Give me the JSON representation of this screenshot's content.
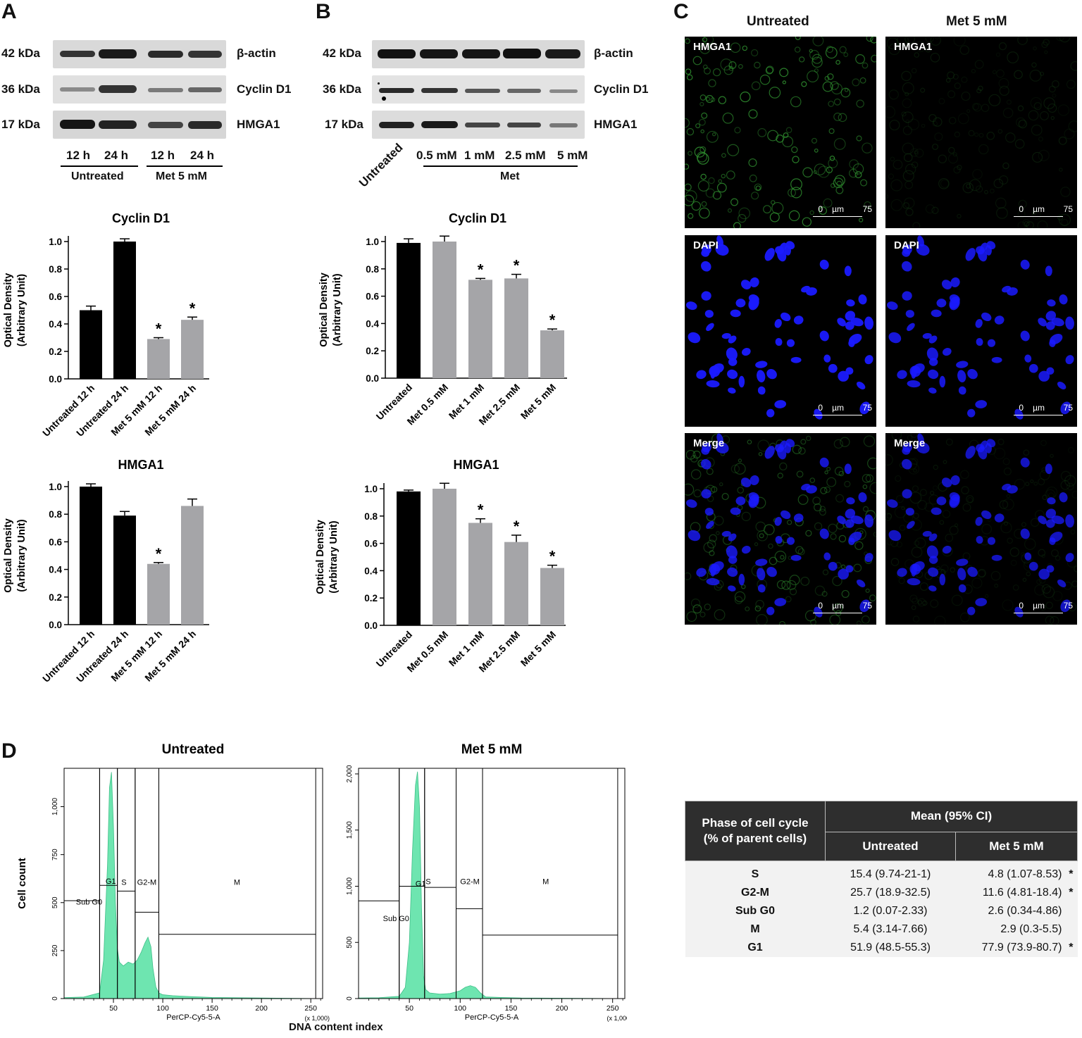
{
  "panel_letters": {
    "a": "A",
    "b": "B",
    "c": "C",
    "d": "D"
  },
  "blot_a": {
    "kda": [
      "42 kDa",
      "36 kDa",
      "17 kDa"
    ],
    "proteins": [
      "β-actin",
      "Cyclin D1",
      "HMGA1"
    ],
    "lanes": [
      "12 h",
      "24 h",
      "12 h",
      "24 h"
    ],
    "groups": [
      "Untreated",
      "Met 5 mM"
    ]
  },
  "blot_b": {
    "kda": [
      "42 kDa",
      "36 kDa",
      "17 kDa"
    ],
    "proteins": [
      "β-actin",
      "Cyclin D1",
      "HMGA1"
    ],
    "lanes": [
      "Untreated",
      "0.5 mM",
      "1 mM",
      "2.5 mM",
      "5 mM"
    ],
    "group": "Met"
  },
  "micro": {
    "col_headers": [
      "Untreated",
      "Met 5 mM"
    ],
    "row_labels": [
      "HMGA1",
      "DAPI",
      "Merge"
    ],
    "scale": {
      "zero": "0",
      "unit": "µm",
      "max": "75"
    },
    "colors": {
      "hmga1": "#2f8f2f",
      "dapi": "#1a1aff",
      "background": "#000000"
    }
  },
  "chart_data": [
    {
      "id": "a_cyclin",
      "type": "bar",
      "title": "Cyclin D1",
      "ylabel": "Optical Density\n(Arbitrary Unit)",
      "ylim": [
        0,
        1.0
      ],
      "yticks": [
        "0.0",
        "0.2",
        "0.4",
        "0.6",
        "0.8",
        "1.0"
      ],
      "categories": [
        "Untreated 12 h",
        "Untreated 24 h",
        "Met 5 mM 12 h",
        "Met 5 mM 24 h"
      ],
      "values": [
        0.5,
        1.0,
        0.29,
        0.43
      ],
      "errors": [
        0.03,
        0.02,
        0.01,
        0.02
      ],
      "colors": [
        "#000000",
        "#000000",
        "#a5a5a8",
        "#a5a5a8"
      ],
      "sig": [
        "",
        "",
        "*",
        "*"
      ]
    },
    {
      "id": "a_hmga1",
      "type": "bar",
      "title": "HMGA1",
      "ylabel": "Optical Density\n(Arbitrary Unit)",
      "ylim": [
        0,
        1.0
      ],
      "yticks": [
        "0.0",
        "0.2",
        "0.4",
        "0.6",
        "0.8",
        "1.0"
      ],
      "categories": [
        "Untreated 12 h",
        "Untreated 24 h",
        "Met 5 mM 12 h",
        "Met 5 mM 24 h"
      ],
      "values": [
        1.0,
        0.79,
        0.44,
        0.86
      ],
      "errors": [
        0.02,
        0.03,
        0.01,
        0.05
      ],
      "colors": [
        "#000000",
        "#000000",
        "#a5a5a8",
        "#a5a5a8"
      ],
      "sig": [
        "",
        "",
        "*",
        ""
      ]
    },
    {
      "id": "b_cyclin",
      "type": "bar",
      "title": "Cyclin D1",
      "ylabel": "Optical Density\n(Arbitrary Unit)",
      "ylim": [
        0,
        1.0
      ],
      "yticks": [
        "0.0",
        "0.2",
        "0.4",
        "0.6",
        "0.8",
        "1.0"
      ],
      "categories": [
        "Untreated",
        "Met 0.5 mM",
        "Met 1 mM",
        "Met 2.5 mM",
        "Met 5 mM"
      ],
      "values": [
        0.99,
        1.0,
        0.72,
        0.73,
        0.35
      ],
      "errors": [
        0.03,
        0.04,
        0.01,
        0.03,
        0.01
      ],
      "colors": [
        "#000000",
        "#a5a5a8",
        "#a5a5a8",
        "#a5a5a8",
        "#a5a5a8"
      ],
      "sig": [
        "",
        "",
        "*",
        "*",
        "*"
      ]
    },
    {
      "id": "b_hmga1",
      "type": "bar",
      "title": "HMGA1",
      "ylabel": "Optical Density\n(Arbitrary Unit)",
      "ylim": [
        0,
        1.0
      ],
      "yticks": [
        "0.0",
        "0.2",
        "0.4",
        "0.6",
        "0.8",
        "1.0"
      ],
      "categories": [
        "Untreated",
        "Met 0.5 mM",
        "Met 1 mM",
        "Met 2.5 mM",
        "Met 5 mM"
      ],
      "values": [
        0.98,
        1.0,
        0.75,
        0.61,
        0.42
      ],
      "errors": [
        0.01,
        0.04,
        0.03,
        0.05,
        0.02
      ],
      "colors": [
        "#000000",
        "#a5a5a8",
        "#a5a5a8",
        "#a5a5a8",
        "#a5a5a8"
      ],
      "sig": [
        "",
        "",
        "*",
        "*",
        "*"
      ]
    },
    {
      "id": "d_untreated",
      "type": "area",
      "title": "Untreated",
      "ylabel": "Cell count",
      "xlabel": "PerCP-Cy5-5-A",
      "x_multiplier": "(x 1,000)",
      "xlim": [
        0,
        262
      ],
      "ylim": [
        0,
        1200
      ],
      "xticks": [
        50,
        100,
        150,
        200,
        250
      ],
      "yticks": [
        0,
        250,
        500,
        750,
        1000
      ],
      "ytick_labels": [
        "0",
        "250",
        "500",
        "750",
        "1,000"
      ],
      "x": [
        0,
        20,
        36,
        40,
        44,
        46,
        48,
        50,
        52,
        54,
        56,
        60,
        65,
        70,
        74,
        78,
        82,
        85,
        88,
        90,
        93,
        96,
        100,
        110,
        130,
        150,
        200,
        260
      ],
      "y": [
        5,
        8,
        30,
        200,
        700,
        1100,
        1180,
        900,
        500,
        260,
        190,
        170,
        190,
        180,
        200,
        240,
        290,
        320,
        270,
        160,
        60,
        30,
        20,
        15,
        10,
        6,
        3,
        0
      ],
      "gates": [
        {
          "name": "Sub G0",
          "x0": 0,
          "x1": 36,
          "level": 510
        },
        {
          "name": "G1",
          "x0": 36,
          "x1": 54,
          "level": 590
        },
        {
          "name": "S",
          "x0": 54,
          "x1": 72,
          "level": 560
        },
        {
          "name": "G2-M",
          "x0": 72,
          "x1": 96,
          "level": 450
        },
        {
          "name": "M",
          "x0": 96,
          "x1": 255,
          "level": 335
        }
      ],
      "gate_labels": [
        {
          "name": "Sub G0",
          "x": 12,
          "y": 490
        },
        {
          "name": "G1",
          "x": 42,
          "y": 598
        },
        {
          "name": "S",
          "x": 58,
          "y": 592
        },
        {
          "name": "G2-M",
          "x": 74,
          "y": 592
        },
        {
          "name": "M",
          "x": 172,
          "y": 592
        }
      ]
    },
    {
      "id": "d_met",
      "type": "area",
      "title": "Met 5 mM",
      "ylabel": "Cell count",
      "xlabel": "PerCP-Cy5-5-A",
      "x_multiplier": "(x 1,000)",
      "xlim": [
        0,
        262
      ],
      "ylim": [
        0,
        2050
      ],
      "xticks": [
        50,
        100,
        150,
        200,
        250
      ],
      "yticks": [
        0,
        500,
        1000,
        1500,
        2000
      ],
      "ytick_labels": [
        "0",
        "500",
        "1,000",
        "1,500",
        "2,000"
      ],
      "x": [
        0,
        20,
        40,
        46,
        50,
        53,
        56,
        58,
        60,
        62,
        64,
        66,
        70,
        80,
        90,
        100,
        105,
        110,
        115,
        120,
        125,
        140,
        160,
        260
      ],
      "y": [
        5,
        8,
        20,
        100,
        500,
        1300,
        1900,
        2020,
        1700,
        800,
        200,
        80,
        50,
        40,
        45,
        70,
        100,
        115,
        100,
        50,
        15,
        10,
        5,
        0
      ],
      "gates": [
        {
          "name": "Sub G0",
          "x0": 0,
          "x1": 40,
          "level": 870
        },
        {
          "name": "G1",
          "x0": 40,
          "x1": 65,
          "level": 1000
        },
        {
          "name": "S",
          "x0": 65,
          "x1": 96,
          "level": 990
        },
        {
          "name": "G2-M",
          "x0": 96,
          "x1": 122,
          "level": 800
        },
        {
          "name": "M",
          "x0": 122,
          "x1": 255,
          "level": 565
        }
      ],
      "gate_labels": [
        {
          "name": "Sub G0",
          "x": 24,
          "y": 690
        },
        {
          "name": "G1",
          "x": 56,
          "y": 1000
        },
        {
          "name": "S",
          "x": 66,
          "y": 1020
        },
        {
          "name": "G2-M",
          "x": 100,
          "y": 1020
        },
        {
          "name": "M",
          "x": 181,
          "y": 1020
        }
      ]
    }
  ],
  "flow": {
    "shared_xlabel": "DNA content index",
    "fill_color": "#6ee5b0"
  },
  "table": {
    "header_phase": "Phase of cell cycle\n(% of parent cells)",
    "header_mean": "Mean (95% CI)",
    "col_untreated": "Untreated",
    "col_met": "Met 5 mM",
    "rows": [
      {
        "phase": "S",
        "untreated": "15.4 (9.74-21-1)",
        "met": "4.8 (1.07-8.53)",
        "sig": "*"
      },
      {
        "phase": "G2-M",
        "untreated": "25.7 (18.9-32.5)",
        "met": "11.6 (4.81-18.4)",
        "sig": "*"
      },
      {
        "phase": "Sub G0",
        "untreated": "1.2 (0.07-2.33)",
        "met": "2.6 (0.34-4.86)",
        "sig": ""
      },
      {
        "phase": "M",
        "untreated": "5.4 (3.14-7.66)",
        "met": "2.9 (0.3-5.5)",
        "sig": ""
      },
      {
        "phase": "G1",
        "untreated": "51.9 (48.5-55.3)",
        "met": "77.9 (73.9-80.7)",
        "sig": "*"
      }
    ]
  }
}
